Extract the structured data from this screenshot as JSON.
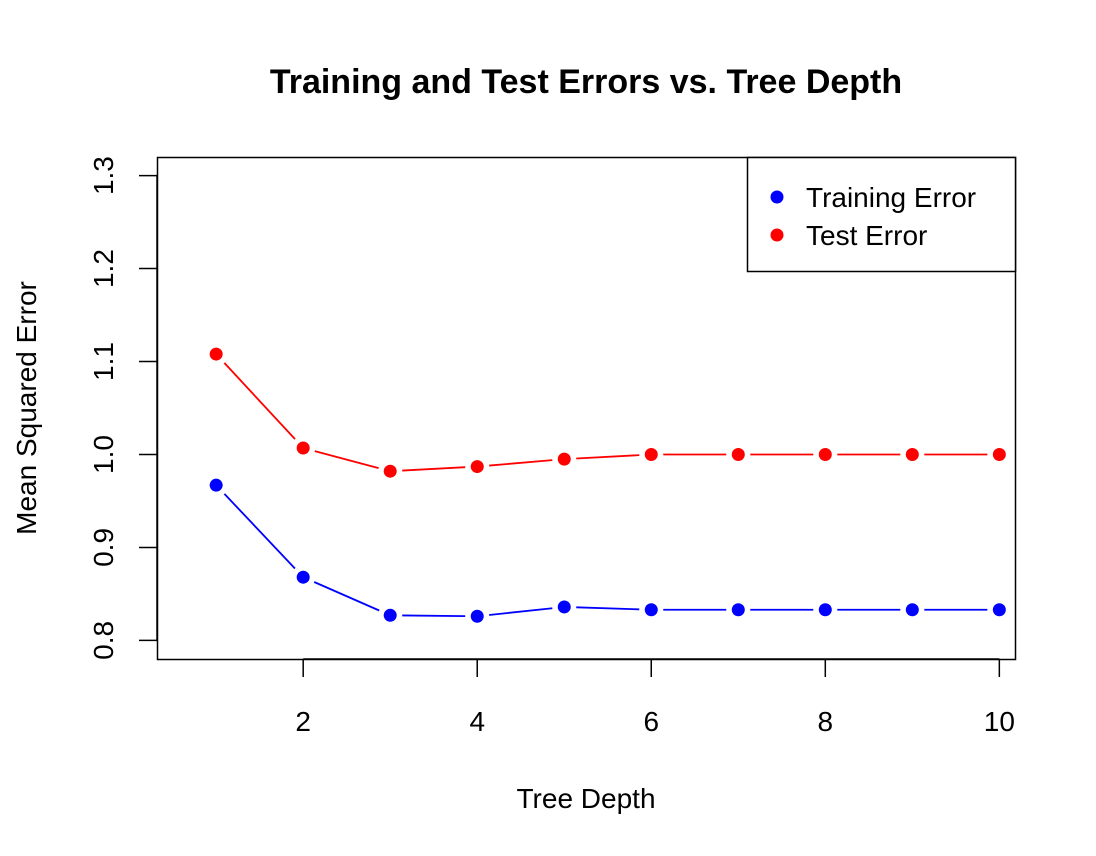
{
  "chart_data": {
    "type": "line",
    "title": "Training and Test Errors vs. Tree Depth",
    "xlabel": "Tree Depth",
    "ylabel": "Mean Squared Error",
    "x": [
      1,
      2,
      3,
      4,
      5,
      6,
      7,
      8,
      9,
      10
    ],
    "xlim": [
      0.32,
      10.18
    ],
    "ylim": [
      0.78,
      1.32
    ],
    "xticks": [
      2,
      4,
      6,
      8,
      10
    ],
    "yticks": [
      0.8,
      0.9,
      1.0,
      1.1,
      1.2,
      1.3
    ],
    "xtick_labels": [
      "2",
      "4",
      "6",
      "8",
      "10"
    ],
    "ytick_labels": [
      "0.8",
      "0.9",
      "1.0",
      "1.1",
      "1.2",
      "1.3"
    ],
    "grid": false,
    "legend_position": "top-right",
    "series": [
      {
        "name": "Training Error",
        "color": "#0000ff",
        "values": [
          0.967,
          0.868,
          0.827,
          0.826,
          0.836,
          0.833,
          0.833,
          0.833,
          0.833,
          0.833
        ]
      },
      {
        "name": "Test Error",
        "color": "#ff0000",
        "values": [
          1.108,
          1.007,
          0.982,
          0.987,
          0.995,
          1.0,
          1.0,
          1.0,
          1.0,
          1.0
        ]
      }
    ]
  }
}
